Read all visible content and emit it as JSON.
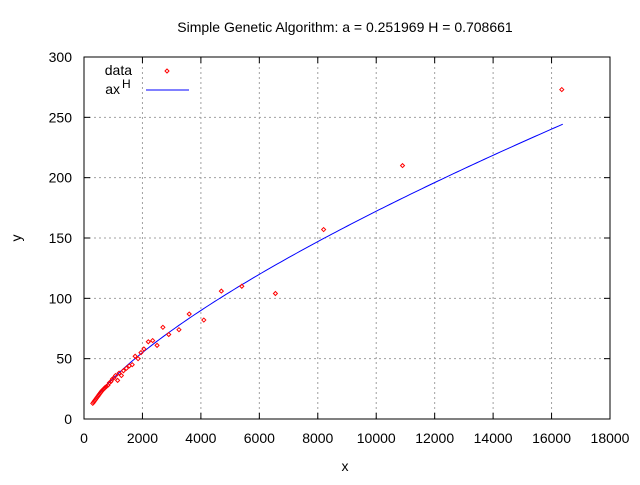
{
  "chart_data": {
    "type": "scatter",
    "title": "Simple Genetic Algorithm: a = 0.251969 H = 0.708661",
    "xlabel": "x",
    "ylabel": "y",
    "xlim": [
      0,
      18000
    ],
    "ylim": [
      0,
      300
    ],
    "x_ticks": [
      0,
      2000,
      4000,
      6000,
      8000,
      10000,
      12000,
      14000,
      16000,
      18000
    ],
    "y_ticks": [
      0,
      50,
      100,
      150,
      200,
      250,
      300
    ],
    "grid": true,
    "legend_position": "top-left",
    "legend": {
      "data_label": "data",
      "fit_label_base": "ax",
      "fit_label_sup": "H"
    },
    "colors": {
      "data_points": "#ff0000",
      "fit_line": "#0000ff",
      "grid": "#a0a0a0",
      "axes": "#000000"
    },
    "series": [
      {
        "name": "data",
        "kind": "points",
        "points": [
          [
            300,
            13
          ],
          [
            330,
            14
          ],
          [
            360,
            15
          ],
          [
            390,
            16
          ],
          [
            420,
            17
          ],
          [
            450,
            18
          ],
          [
            480,
            19
          ],
          [
            510,
            20
          ],
          [
            540,
            21
          ],
          [
            570,
            22
          ],
          [
            600,
            23
          ],
          [
            640,
            24
          ],
          [
            680,
            25
          ],
          [
            720,
            26
          ],
          [
            770,
            27
          ],
          [
            820,
            28
          ],
          [
            870,
            30
          ],
          [
            920,
            31
          ],
          [
            970,
            33
          ],
          [
            1020,
            34
          ],
          [
            1080,
            36
          ],
          [
            1150,
            32
          ],
          [
            1200,
            38
          ],
          [
            1280,
            36
          ],
          [
            1350,
            40
          ],
          [
            1450,
            42
          ],
          [
            1550,
            44
          ],
          [
            1650,
            45
          ],
          [
            1750,
            52
          ],
          [
            1850,
            50
          ],
          [
            1950,
            55
          ],
          [
            2050,
            58
          ],
          [
            2200,
            64
          ],
          [
            2350,
            65
          ],
          [
            2500,
            61
          ],
          [
            2700,
            76
          ],
          [
            2900,
            70
          ],
          [
            3250,
            74
          ],
          [
            3600,
            87
          ],
          [
            4100,
            82
          ],
          [
            4700,
            106
          ],
          [
            5400,
            110
          ],
          [
            6550,
            104
          ],
          [
            8200,
            157
          ],
          [
            10900,
            210
          ],
          [
            16350,
            273
          ]
        ]
      },
      {
        "name": "ax^H",
        "kind": "line",
        "a": 0.251969,
        "H": 0.708661,
        "x_range": [
          300,
          16384
        ]
      }
    ]
  }
}
